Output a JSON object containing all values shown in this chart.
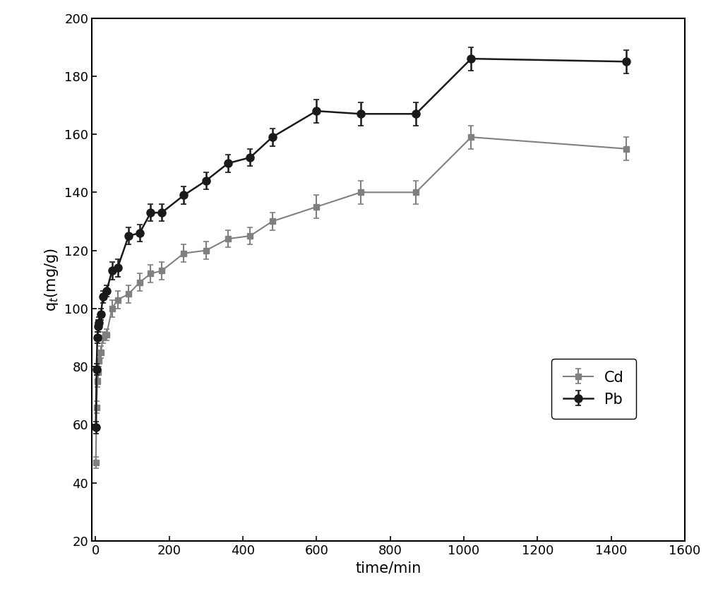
{
  "Cd_x": [
    1,
    3,
    5,
    7,
    10,
    15,
    20,
    30,
    45,
    60,
    90,
    120,
    150,
    180,
    240,
    300,
    360,
    420,
    480,
    600,
    720,
    870,
    1020,
    1440
  ],
  "Cd_y": [
    47,
    66,
    75,
    78,
    82,
    85,
    90,
    91,
    100,
    103,
    105,
    109,
    112,
    113,
    119,
    120,
    124,
    125,
    130,
    135,
    140,
    140,
    159,
    155
  ],
  "Cd_yerr": [
    2,
    2,
    2,
    2,
    2,
    2,
    2,
    2,
    3,
    3,
    3,
    3,
    3,
    3,
    3,
    3,
    3,
    3,
    3,
    4,
    4,
    4,
    4,
    4
  ],
  "Pb_x": [
    1,
    3,
    5,
    7,
    10,
    15,
    20,
    30,
    45,
    60,
    90,
    120,
    150,
    180,
    240,
    300,
    360,
    420,
    480,
    600,
    720,
    870,
    1020,
    1440
  ],
  "Pb_y": [
    59,
    79,
    90,
    94,
    95,
    98,
    104,
    106,
    113,
    114,
    125,
    126,
    133,
    133,
    139,
    144,
    150,
    152,
    159,
    168,
    167,
    167,
    186,
    185
  ],
  "Pb_yerr": [
    2,
    2,
    2,
    2,
    2,
    2,
    2,
    2,
    3,
    3,
    3,
    3,
    3,
    3,
    3,
    3,
    3,
    3,
    3,
    4,
    4,
    4,
    4,
    4
  ],
  "xlabel": "time/min",
  "ylabel": "q$_t$(mg/g)",
  "xlim": [
    -10,
    1600
  ],
  "ylim": [
    20,
    200
  ],
  "yticks": [
    20,
    40,
    60,
    80,
    100,
    120,
    140,
    160,
    180,
    200
  ],
  "xticks": [
    0,
    200,
    400,
    600,
    800,
    1000,
    1200,
    1400,
    1600
  ],
  "Cd_color": "#808080",
  "Pb_color": "#1a1a1a",
  "legend_labels": [
    "Cd",
    "Pb"
  ],
  "bg_color": "#ffffff"
}
